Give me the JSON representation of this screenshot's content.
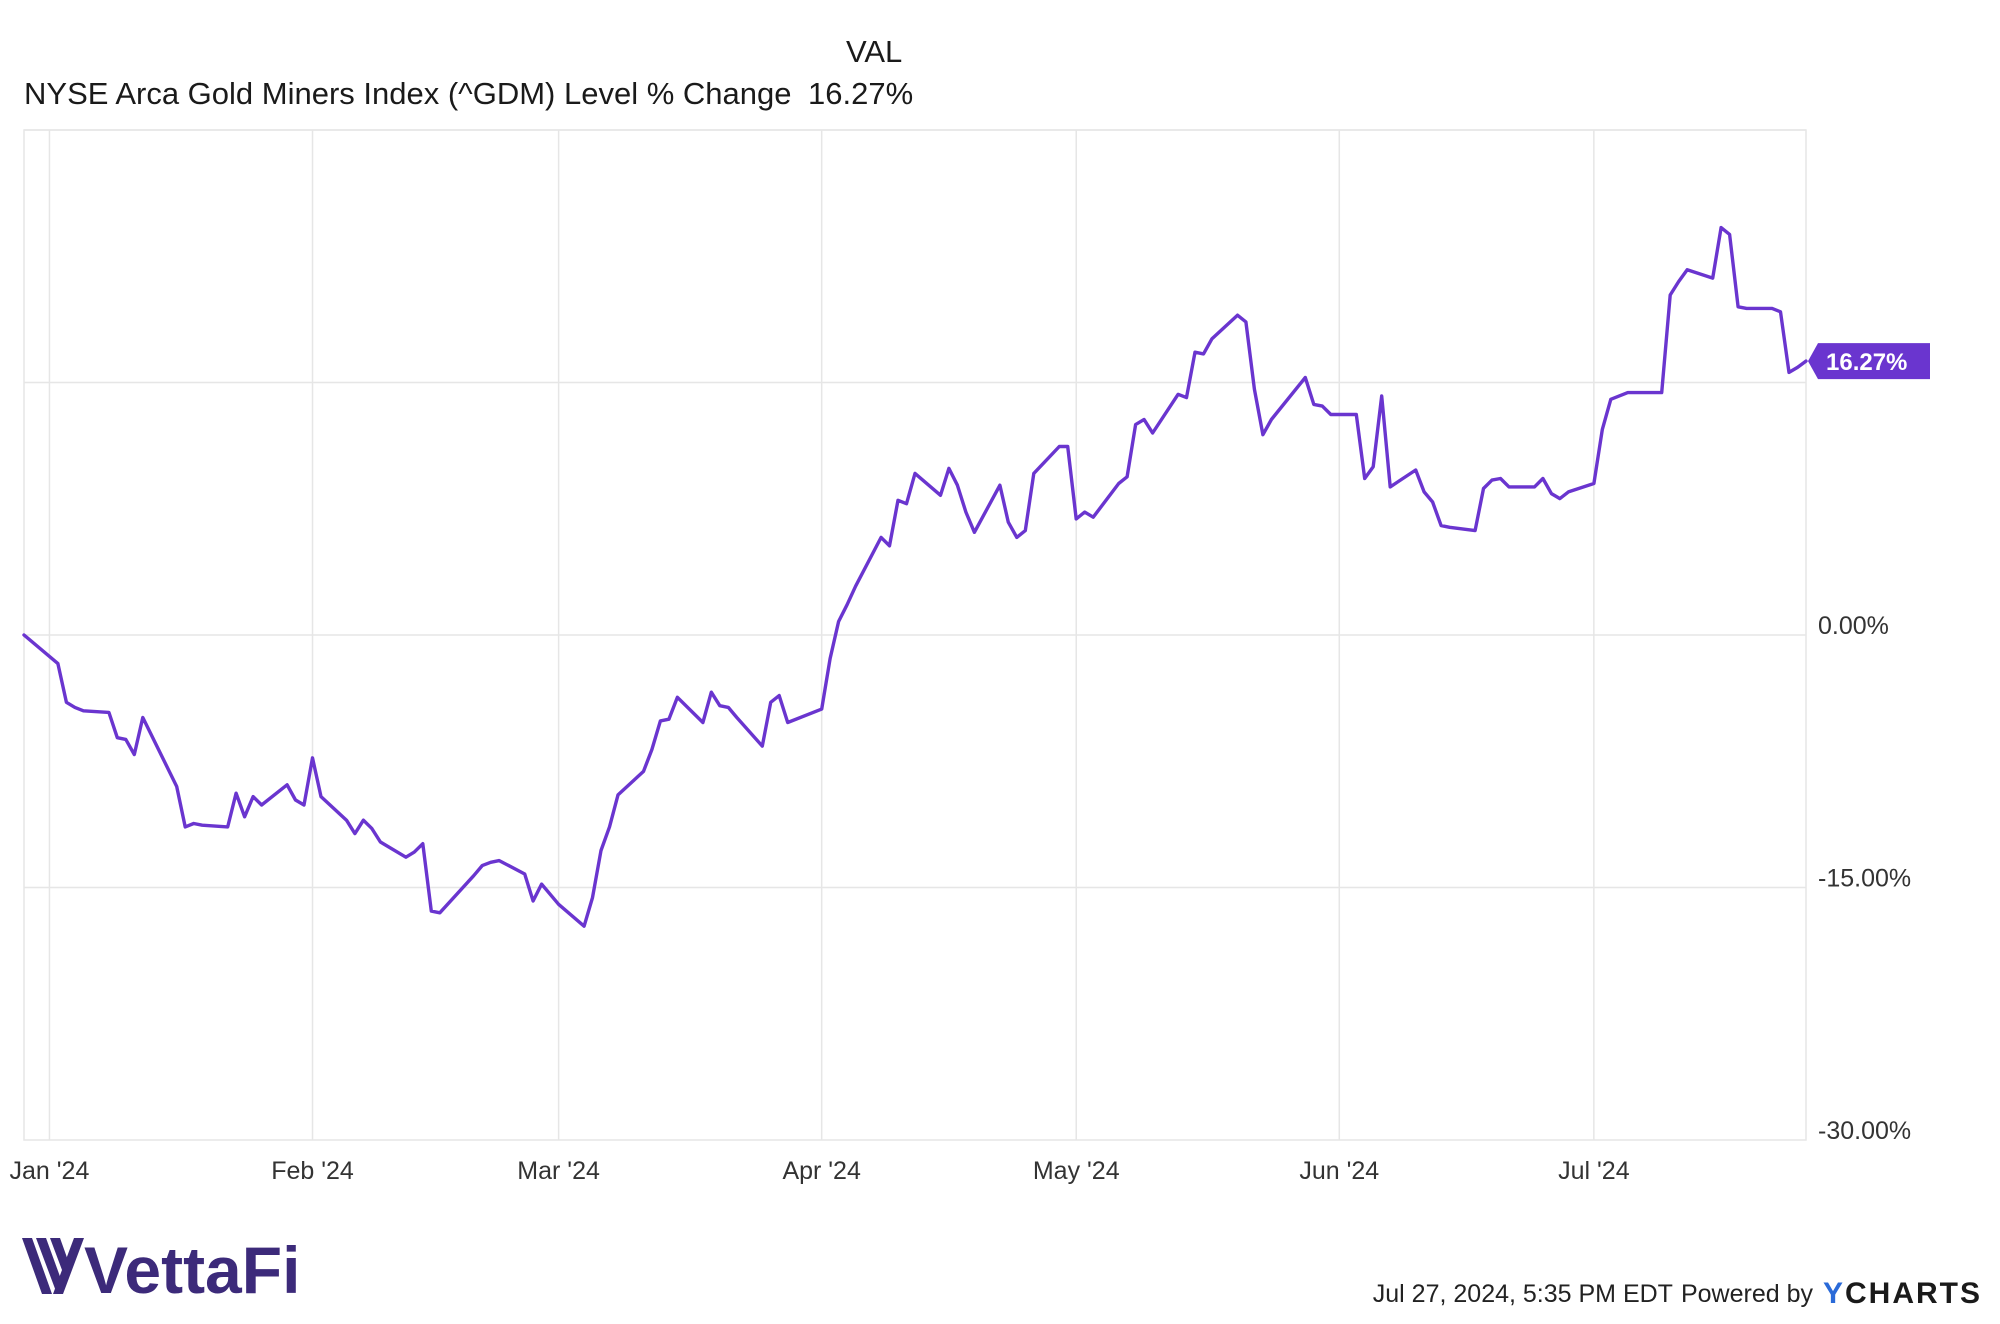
{
  "legend": {
    "column_header": "VAL",
    "series_name": "NYSE Arca Gold Miners Index (^GDM) Level % Change",
    "series_value": "16.27%"
  },
  "colors": {
    "series": "#6a35cf",
    "grid": "#e6e6e6",
    "axis_text": "#333333",
    "brand": "#3c2a7a"
  },
  "chart_data": {
    "type": "line",
    "title": "",
    "xlabel": "",
    "ylabel": "",
    "ylim": [
      -30,
      30
    ],
    "y_ticks": [
      {
        "value": 0,
        "label": "0.00%"
      },
      {
        "value": -15,
        "label": "-15.00%"
      },
      {
        "value": -30,
        "label": "-30.00%"
      }
    ],
    "x_ticks": [
      {
        "date": "2024-01-01",
        "label": "Jan '24"
      },
      {
        "date": "2024-02-01",
        "label": "Feb '24"
      },
      {
        "date": "2024-03-01",
        "label": "Mar '24"
      },
      {
        "date": "2024-04-01",
        "label": "Apr '24"
      },
      {
        "date": "2024-05-01",
        "label": "May '24"
      },
      {
        "date": "2024-06-01",
        "label": "Jun '24"
      },
      {
        "date": "2024-07-01",
        "label": "Jul '24"
      }
    ],
    "xlim": [
      "2023-12-29",
      "2024-07-26"
    ],
    "grid": true,
    "end_label": "16.27%",
    "series": [
      {
        "name": "NYSE Arca Gold Miners Index (^GDM) Level % Change",
        "points": [
          [
            "2023-12-29",
            0.0
          ],
          [
            "2024-01-02",
            -1.7
          ],
          [
            "2024-01-03",
            -4.0
          ],
          [
            "2024-01-04",
            -4.3
          ],
          [
            "2024-01-05",
            -4.5
          ],
          [
            "2024-01-08",
            -4.6
          ],
          [
            "2024-01-09",
            -6.1
          ],
          [
            "2024-01-10",
            -6.2
          ],
          [
            "2024-01-11",
            -7.1
          ],
          [
            "2024-01-12",
            -4.9
          ],
          [
            "2024-01-16",
            -9.0
          ],
          [
            "2024-01-17",
            -11.4
          ],
          [
            "2024-01-18",
            -11.2
          ],
          [
            "2024-01-19",
            -11.3
          ],
          [
            "2024-01-22",
            -11.4
          ],
          [
            "2024-01-23",
            -9.4
          ],
          [
            "2024-01-24",
            -10.8
          ],
          [
            "2024-01-25",
            -9.6
          ],
          [
            "2024-01-26",
            -10.1
          ],
          [
            "2024-01-29",
            -8.9
          ],
          [
            "2024-01-30",
            -9.8
          ],
          [
            "2024-01-31",
            -10.1
          ],
          [
            "2024-02-01",
            -7.3
          ],
          [
            "2024-02-02",
            -9.6
          ],
          [
            "2024-02-05",
            -11.0
          ],
          [
            "2024-02-06",
            -11.8
          ],
          [
            "2024-02-07",
            -11.0
          ],
          [
            "2024-02-08",
            -11.5
          ],
          [
            "2024-02-09",
            -12.3
          ],
          [
            "2024-02-12",
            -13.2
          ],
          [
            "2024-02-13",
            -12.9
          ],
          [
            "2024-02-14",
            -12.4
          ],
          [
            "2024-02-15",
            -16.4
          ],
          [
            "2024-02-16",
            -16.5
          ],
          [
            "2024-02-20",
            -14.3
          ],
          [
            "2024-02-21",
            -13.7
          ],
          [
            "2024-02-22",
            -13.5
          ],
          [
            "2024-02-23",
            -13.4
          ],
          [
            "2024-02-26",
            -14.2
          ],
          [
            "2024-02-27",
            -15.8
          ],
          [
            "2024-02-28",
            -14.8
          ],
          [
            "2024-03-01",
            -16.0
          ],
          [
            "2024-03-04",
            -17.3
          ],
          [
            "2024-03-05",
            -15.6
          ],
          [
            "2024-03-06",
            -12.8
          ],
          [
            "2024-03-07",
            -11.4
          ],
          [
            "2024-03-08",
            -9.5
          ],
          [
            "2024-03-11",
            -8.1
          ],
          [
            "2024-03-12",
            -6.8
          ],
          [
            "2024-03-13",
            -5.1
          ],
          [
            "2024-03-14",
            -5.0
          ],
          [
            "2024-03-15",
            -3.7
          ],
          [
            "2024-03-18",
            -5.2
          ],
          [
            "2024-03-19",
            -3.4
          ],
          [
            "2024-03-20",
            -4.2
          ],
          [
            "2024-03-21",
            -4.3
          ],
          [
            "2024-03-22",
            -4.9
          ],
          [
            "2024-03-25",
            -6.6
          ],
          [
            "2024-03-26",
            -4.0
          ],
          [
            "2024-03-27",
            -3.6
          ],
          [
            "2024-03-28",
            -5.2
          ],
          [
            "2024-04-01",
            -4.4
          ],
          [
            "2024-04-02",
            -1.4
          ],
          [
            "2024-04-03",
            0.8
          ],
          [
            "2024-04-04",
            1.8
          ],
          [
            "2024-04-05",
            2.9
          ],
          [
            "2024-04-08",
            5.8
          ],
          [
            "2024-04-09",
            5.3
          ],
          [
            "2024-04-10",
            8.0
          ],
          [
            "2024-04-11",
            7.8
          ],
          [
            "2024-04-12",
            9.6
          ],
          [
            "2024-04-15",
            8.3
          ],
          [
            "2024-04-16",
            9.9
          ],
          [
            "2024-04-17",
            8.9
          ],
          [
            "2024-04-18",
            7.3
          ],
          [
            "2024-04-19",
            6.1
          ],
          [
            "2024-04-22",
            8.9
          ],
          [
            "2024-04-23",
            6.7
          ],
          [
            "2024-04-24",
            5.8
          ],
          [
            "2024-04-25",
            6.2
          ],
          [
            "2024-04-26",
            9.6
          ],
          [
            "2024-04-29",
            11.2
          ],
          [
            "2024-04-30",
            11.2
          ],
          [
            "2024-05-01",
            6.9
          ],
          [
            "2024-05-02",
            7.3
          ],
          [
            "2024-05-03",
            7.0
          ],
          [
            "2024-05-06",
            9.0
          ],
          [
            "2024-05-07",
            9.4
          ],
          [
            "2024-05-08",
            12.5
          ],
          [
            "2024-05-09",
            12.8
          ],
          [
            "2024-05-10",
            12.0
          ],
          [
            "2024-05-13",
            14.3
          ],
          [
            "2024-05-14",
            14.1
          ],
          [
            "2024-05-15",
            16.8
          ],
          [
            "2024-05-16",
            16.7
          ],
          [
            "2024-05-17",
            17.6
          ],
          [
            "2024-05-20",
            19.0
          ],
          [
            "2024-05-21",
            18.6
          ],
          [
            "2024-05-22",
            14.6
          ],
          [
            "2024-05-23",
            11.9
          ],
          [
            "2024-05-24",
            12.8
          ],
          [
            "2024-05-28",
            15.3
          ],
          [
            "2024-05-29",
            13.7
          ],
          [
            "2024-05-30",
            13.6
          ],
          [
            "2024-05-31",
            13.1
          ],
          [
            "2024-06-03",
            13.1
          ],
          [
            "2024-06-04",
            9.3
          ],
          [
            "2024-06-05",
            10.0
          ],
          [
            "2024-06-06",
            14.2
          ],
          [
            "2024-06-07",
            8.8
          ],
          [
            "2024-06-10",
            9.8
          ],
          [
            "2024-06-11",
            8.5
          ],
          [
            "2024-06-12",
            7.9
          ],
          [
            "2024-06-13",
            6.5
          ],
          [
            "2024-06-14",
            6.4
          ],
          [
            "2024-06-17",
            6.2
          ],
          [
            "2024-06-18",
            8.7
          ],
          [
            "2024-06-19",
            9.2
          ],
          [
            "2024-06-20",
            9.3
          ],
          [
            "2024-06-21",
            8.8
          ],
          [
            "2024-06-24",
            8.8
          ],
          [
            "2024-06-25",
            9.3
          ],
          [
            "2024-06-26",
            8.4
          ],
          [
            "2024-06-27",
            8.1
          ],
          [
            "2024-06-28",
            8.5
          ],
          [
            "2024-07-01",
            9.0
          ],
          [
            "2024-07-02",
            12.2
          ],
          [
            "2024-07-03",
            14.0
          ],
          [
            "2024-07-05",
            14.4
          ],
          [
            "2024-07-08",
            14.4
          ],
          [
            "2024-07-09",
            14.4
          ],
          [
            "2024-07-10",
            20.2
          ],
          [
            "2024-07-11",
            21.0
          ],
          [
            "2024-07-12",
            21.7
          ],
          [
            "2024-07-15",
            21.2
          ],
          [
            "2024-07-16",
            24.2
          ],
          [
            "2024-07-17",
            23.8
          ],
          [
            "2024-07-18",
            19.5
          ],
          [
            "2024-07-19",
            19.4
          ],
          [
            "2024-07-22",
            19.4
          ],
          [
            "2024-07-23",
            19.2
          ],
          [
            "2024-07-24",
            15.6
          ],
          [
            "2024-07-25",
            15.9
          ],
          [
            "2024-07-26",
            16.27
          ]
        ]
      }
    ]
  },
  "footer": {
    "timestamp": "Jul 27, 2024, 5:35 PM EDT",
    "powered_by": "Powered by",
    "ycharts_y": "Y",
    "ycharts_rest": "CHARTS"
  },
  "brand": {
    "name": "VettaFi"
  }
}
